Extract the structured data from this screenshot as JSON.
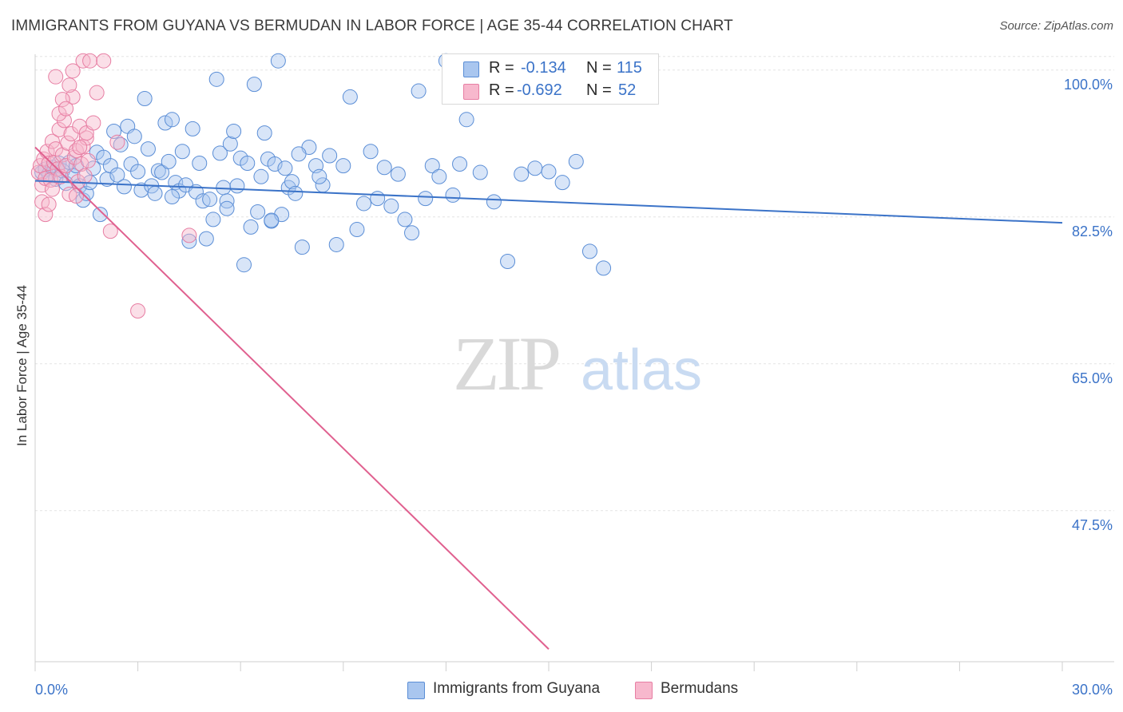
{
  "title": "IMMIGRANTS FROM GUYANA VS BERMUDAN IN LABOR FORCE | AGE 35-44 CORRELATION CHART",
  "source": "Source: ZipAtlas.com",
  "watermark": {
    "zip": "ZIP",
    "atlas": "atlas"
  },
  "legend": {
    "rows": [
      {
        "r_label": "R =",
        "r_value": "-0.134",
        "n_label": "N =",
        "n_value": "115",
        "color": "#a9c6ef",
        "stroke": "#5b8ed6"
      },
      {
        "r_label": "R =",
        "r_value": "-0.692",
        "n_label": "N =",
        "n_value": "52",
        "color": "#f7b8cd",
        "stroke": "#e77ea3"
      }
    ]
  },
  "bottom_legend": [
    {
      "label": "Immigrants from Guyana",
      "color": "#a9c6ef",
      "stroke": "#5b8ed6"
    },
    {
      "label": "Bermudans",
      "color": "#f7b8cd",
      "stroke": "#e77ea3"
    }
  ],
  "chart_data": {
    "type": "scatter",
    "xlabel": "",
    "ylabel": "In Labor Force | Age 35-44",
    "xlim": [
      0,
      30
    ],
    "ylim": [
      29.5,
      101.5
    ],
    "x_tick_labels": [
      "0.0%",
      "30.0%"
    ],
    "y_ticks": [
      100,
      82.5,
      65,
      47.5
    ],
    "y_tick_labels": [
      "100.0%",
      "82.5%",
      "65.0%",
      "47.5%"
    ],
    "grid": true,
    "legend_position": "top-center",
    "series": [
      {
        "name": "Immigrants from Guyana",
        "color": "#a9c6ef",
        "stroke": "#5b8ed6",
        "trend": {
          "x": [
            0,
            30
          ],
          "y": [
            86.8,
            81.8
          ],
          "color": "#3b73c8"
        },
        "points": [
          [
            0.2,
            87.8
          ],
          [
            0.3,
            88.2
          ],
          [
            0.4,
            87.6
          ],
          [
            0.5,
            88.4
          ],
          [
            0.6,
            87.0
          ],
          [
            0.7,
            88.9
          ],
          [
            0.8,
            88.0
          ],
          [
            0.9,
            86.5
          ],
          [
            1.0,
            89.0
          ],
          [
            1.1,
            87.4
          ],
          [
            1.2,
            88.6
          ],
          [
            1.3,
            86.2
          ],
          [
            1.4,
            84.5
          ],
          [
            1.5,
            85.3
          ],
          [
            1.6,
            86.6
          ],
          [
            1.7,
            88.3
          ],
          [
            1.8,
            90.2
          ],
          [
            1.9,
            82.8
          ],
          [
            2.0,
            89.6
          ],
          [
            2.1,
            87.0
          ],
          [
            2.2,
            88.6
          ],
          [
            2.3,
            92.7
          ],
          [
            2.4,
            87.5
          ],
          [
            2.5,
            91.1
          ],
          [
            2.6,
            86.1
          ],
          [
            2.7,
            93.3
          ],
          [
            2.8,
            88.8
          ],
          [
            2.9,
            92.1
          ],
          [
            3.0,
            87.9
          ],
          [
            3.1,
            85.7
          ],
          [
            3.2,
            96.6
          ],
          [
            3.3,
            90.6
          ],
          [
            3.4,
            86.2
          ],
          [
            3.5,
            85.3
          ],
          [
            3.6,
            88.0
          ],
          [
            3.7,
            87.8
          ],
          [
            3.8,
            93.7
          ],
          [
            3.9,
            89.1
          ],
          [
            4.0,
            94.1
          ],
          [
            4.1,
            86.6
          ],
          [
            4.2,
            85.6
          ],
          [
            4.3,
            90.3
          ],
          [
            4.4,
            86.3
          ],
          [
            4.5,
            79.6
          ],
          [
            4.6,
            93.0
          ],
          [
            4.7,
            85.5
          ],
          [
            4.8,
            88.9
          ],
          [
            4.9,
            84.4
          ],
          [
            5.0,
            79.9
          ],
          [
            5.1,
            84.6
          ],
          [
            5.2,
            82.2
          ],
          [
            5.3,
            98.9
          ],
          [
            5.4,
            90.1
          ],
          [
            5.5,
            86.0
          ],
          [
            5.6,
            84.4
          ],
          [
            5.7,
            91.2
          ],
          [
            5.8,
            92.7
          ],
          [
            5.9,
            86.2
          ],
          [
            6.0,
            89.5
          ],
          [
            6.1,
            76.8
          ],
          [
            6.2,
            88.9
          ],
          [
            6.3,
            81.3
          ],
          [
            6.4,
            98.3
          ],
          [
            6.5,
            83.1
          ],
          [
            6.6,
            87.3
          ],
          [
            6.7,
            92.5
          ],
          [
            6.8,
            89.4
          ],
          [
            6.9,
            82.0
          ],
          [
            7.0,
            88.8
          ],
          [
            7.1,
            101.1
          ],
          [
            7.2,
            82.8
          ],
          [
            7.3,
            88.3
          ],
          [
            7.4,
            86.0
          ],
          [
            7.5,
            86.7
          ],
          [
            7.6,
            85.3
          ],
          [
            7.8,
            78.9
          ],
          [
            8.0,
            90.8
          ],
          [
            8.2,
            88.6
          ],
          [
            8.4,
            86.3
          ],
          [
            8.6,
            89.8
          ],
          [
            8.8,
            79.2
          ],
          [
            9.0,
            88.6
          ],
          [
            9.2,
            96.8
          ],
          [
            9.4,
            81.0
          ],
          [
            9.6,
            84.1
          ],
          [
            9.8,
            90.3
          ],
          [
            10.0,
            84.7
          ],
          [
            10.2,
            88.4
          ],
          [
            10.4,
            83.8
          ],
          [
            10.6,
            87.6
          ],
          [
            10.8,
            82.2
          ],
          [
            11.0,
            80.6
          ],
          [
            11.2,
            97.5
          ],
          [
            11.4,
            84.7
          ],
          [
            11.6,
            88.6
          ],
          [
            11.8,
            87.3
          ],
          [
            12.0,
            101.1
          ],
          [
            12.2,
            85.1
          ],
          [
            12.4,
            88.8
          ],
          [
            12.6,
            94.1
          ],
          [
            13.0,
            87.8
          ],
          [
            13.4,
            84.3
          ],
          [
            13.8,
            77.2
          ],
          [
            14.2,
            87.6
          ],
          [
            14.6,
            88.3
          ],
          [
            15.0,
            87.9
          ],
          [
            15.4,
            86.6
          ],
          [
            15.8,
            89.1
          ],
          [
            16.2,
            78.4
          ],
          [
            16.6,
            76.4
          ],
          [
            4.0,
            84.9
          ],
          [
            5.6,
            83.5
          ],
          [
            6.9,
            82.1
          ],
          [
            7.7,
            90.0
          ],
          [
            8.3,
            87.3
          ]
        ]
      },
      {
        "name": "Bermudans",
        "color": "#f7b8cd",
        "stroke": "#e77ea3",
        "trend": {
          "x": [
            0,
            15
          ],
          "y": [
            90.8,
            31.0
          ],
          "color": "#e0608f"
        },
        "points": [
          [
            0.1,
            87.8
          ],
          [
            0.15,
            88.6
          ],
          [
            0.2,
            86.3
          ],
          [
            0.25,
            89.4
          ],
          [
            0.3,
            87.1
          ],
          [
            0.35,
            90.3
          ],
          [
            0.4,
            88.9
          ],
          [
            0.45,
            86.9
          ],
          [
            0.5,
            91.5
          ],
          [
            0.55,
            89.0
          ],
          [
            0.6,
            90.6
          ],
          [
            0.65,
            88.2
          ],
          [
            0.7,
            92.9
          ],
          [
            0.75,
            87.3
          ],
          [
            0.8,
            89.9
          ],
          [
            0.85,
            94.0
          ],
          [
            0.9,
            88.6
          ],
          [
            0.95,
            91.3
          ],
          [
            1.0,
            85.2
          ],
          [
            1.05,
            92.4
          ],
          [
            1.1,
            96.8
          ],
          [
            1.15,
            89.6
          ],
          [
            1.2,
            90.4
          ],
          [
            1.25,
            86.7
          ],
          [
            1.3,
            93.3
          ],
          [
            1.35,
            88.8
          ],
          [
            1.4,
            90.9
          ],
          [
            1.45,
            87.4
          ],
          [
            1.5,
            91.9
          ],
          [
            1.55,
            89.2
          ],
          [
            0.2,
            84.3
          ],
          [
            0.3,
            82.8
          ],
          [
            0.4,
            84.0
          ],
          [
            0.5,
            85.8
          ],
          [
            0.6,
            99.2
          ],
          [
            0.7,
            94.8
          ],
          [
            0.8,
            96.5
          ],
          [
            0.9,
            95.4
          ],
          [
            1.0,
            98.2
          ],
          [
            1.1,
            99.9
          ],
          [
            1.2,
            85.0
          ],
          [
            1.3,
            90.8
          ],
          [
            1.4,
            101.1
          ],
          [
            1.5,
            92.5
          ],
          [
            1.6,
            101.1
          ],
          [
            1.7,
            93.7
          ],
          [
            1.8,
            97.3
          ],
          [
            2.0,
            101.1
          ],
          [
            2.2,
            80.8
          ],
          [
            2.4,
            91.4
          ],
          [
            3.0,
            71.3
          ],
          [
            4.5,
            80.3
          ]
        ]
      }
    ]
  }
}
